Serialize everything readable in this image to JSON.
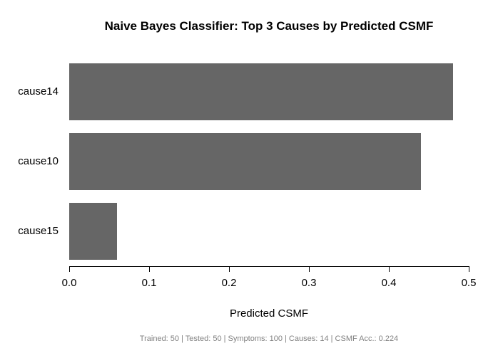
{
  "chart_data": {
    "type": "bar",
    "orientation": "horizontal",
    "title": "Naive Bayes Classifier: Top 3 Causes by Predicted CSMF",
    "categories": [
      "cause14",
      "cause10",
      "cause15"
    ],
    "values": [
      0.48,
      0.44,
      0.06
    ],
    "xlabel": "Predicted CSMF",
    "ylabel": "",
    "xlim": [
      0,
      0.5
    ],
    "xtick_labels": [
      "0.0",
      "0.1",
      "0.2",
      "0.3",
      "0.4",
      "0.5"
    ],
    "xtick_values": [
      0,
      0.1,
      0.2,
      0.3,
      0.4,
      0.5
    ],
    "bar_color": "#666666",
    "axis_color": "#000000",
    "grid": false,
    "legend": "none",
    "footer": "Trained: 50 | Tested: 50 | Symptoms: 100 | Causes: 14 | CSMF Acc.: 0.224",
    "footer_color": "#808080"
  }
}
